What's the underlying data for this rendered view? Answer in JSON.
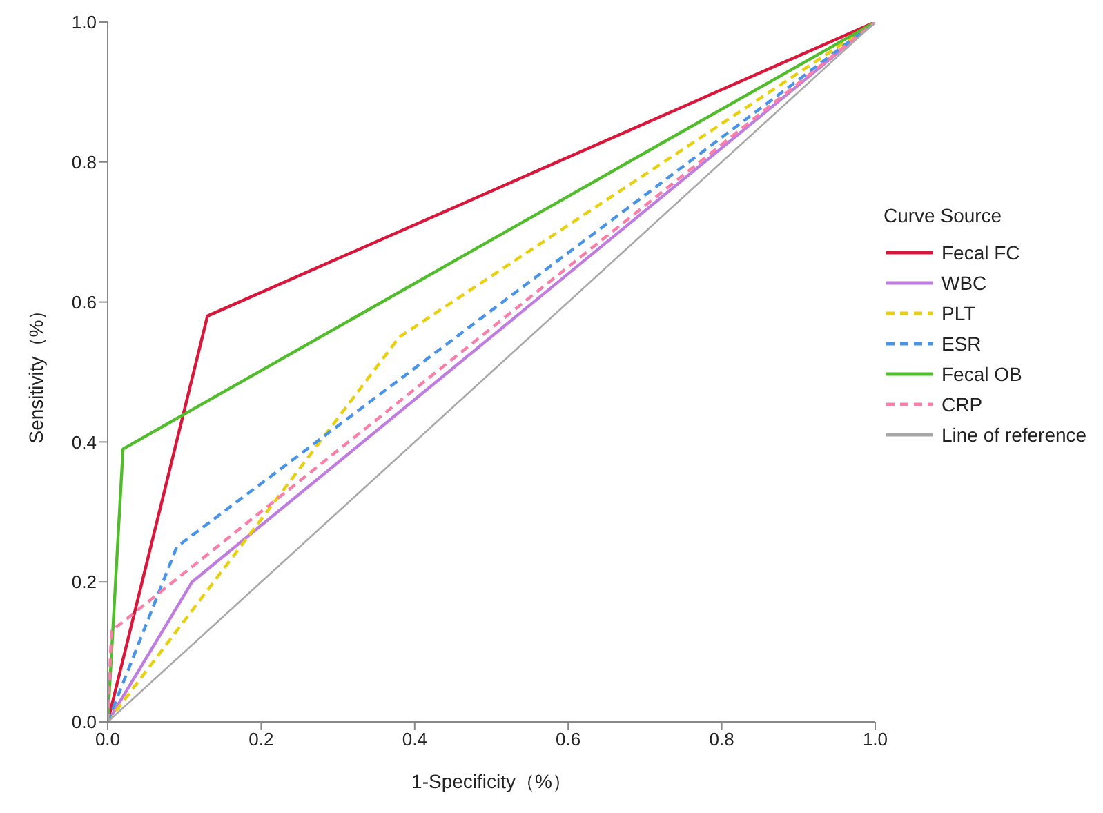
{
  "chart_data": {
    "type": "line",
    "xlabel": "1-Specificity（%）",
    "ylabel": "Sensitivity（%）",
    "legend_title": "Curve Source",
    "legend": "right",
    "grid": false,
    "marker": "none",
    "xlim": [
      0,
      1
    ],
    "ylim": [
      0,
      1
    ],
    "xticks": [
      {
        "value": 0,
        "label": "0.0"
      },
      0.2,
      0.4,
      0.6,
      0.8,
      {
        "value": 1,
        "label": "1.0"
      }
    ],
    "yticks": [
      {
        "value": 0,
        "label": "0.0"
      },
      0.2,
      0.4,
      0.6,
      0.8,
      {
        "value": 1,
        "label": "1.0"
      }
    ],
    "series": [
      {
        "name": "Fecal FC",
        "color": "#d8173a",
        "line_style": "solid",
        "x": [
          0,
          0.13,
          1
        ],
        "values": [
          0,
          0.58,
          1
        ]
      },
      {
        "name": "WBC",
        "color": "#c07de0",
        "line_style": "solid",
        "x": [
          0,
          0.11,
          1
        ],
        "values": [
          0,
          0.2,
          1
        ]
      },
      {
        "name": "PLT",
        "color": "#e8d010",
        "line_style": "dashed",
        "x": [
          0,
          0.38,
          1
        ],
        "values": [
          0,
          0.55,
          1
        ]
      },
      {
        "name": "ESR",
        "color": "#4a94e8",
        "line_style": "dashed",
        "x": [
          0,
          0.09,
          1
        ],
        "values": [
          0,
          0.25,
          1
        ]
      },
      {
        "name": "Fecal OB",
        "color": "#52bd2c",
        "line_style": "solid",
        "x": [
          0,
          0.02,
          1
        ],
        "values": [
          0,
          0.39,
          1
        ]
      },
      {
        "name": "CRP",
        "color": "#f77fa8",
        "line_style": "dashed",
        "x": [
          0,
          0.005,
          1
        ],
        "values": [
          0,
          0.13,
          1
        ]
      },
      {
        "name": "Line of reference",
        "color": "#a8a8a8",
        "line_style": "solid",
        "x": [
          0,
          1
        ],
        "values": [
          0,
          1
        ]
      }
    ]
  }
}
